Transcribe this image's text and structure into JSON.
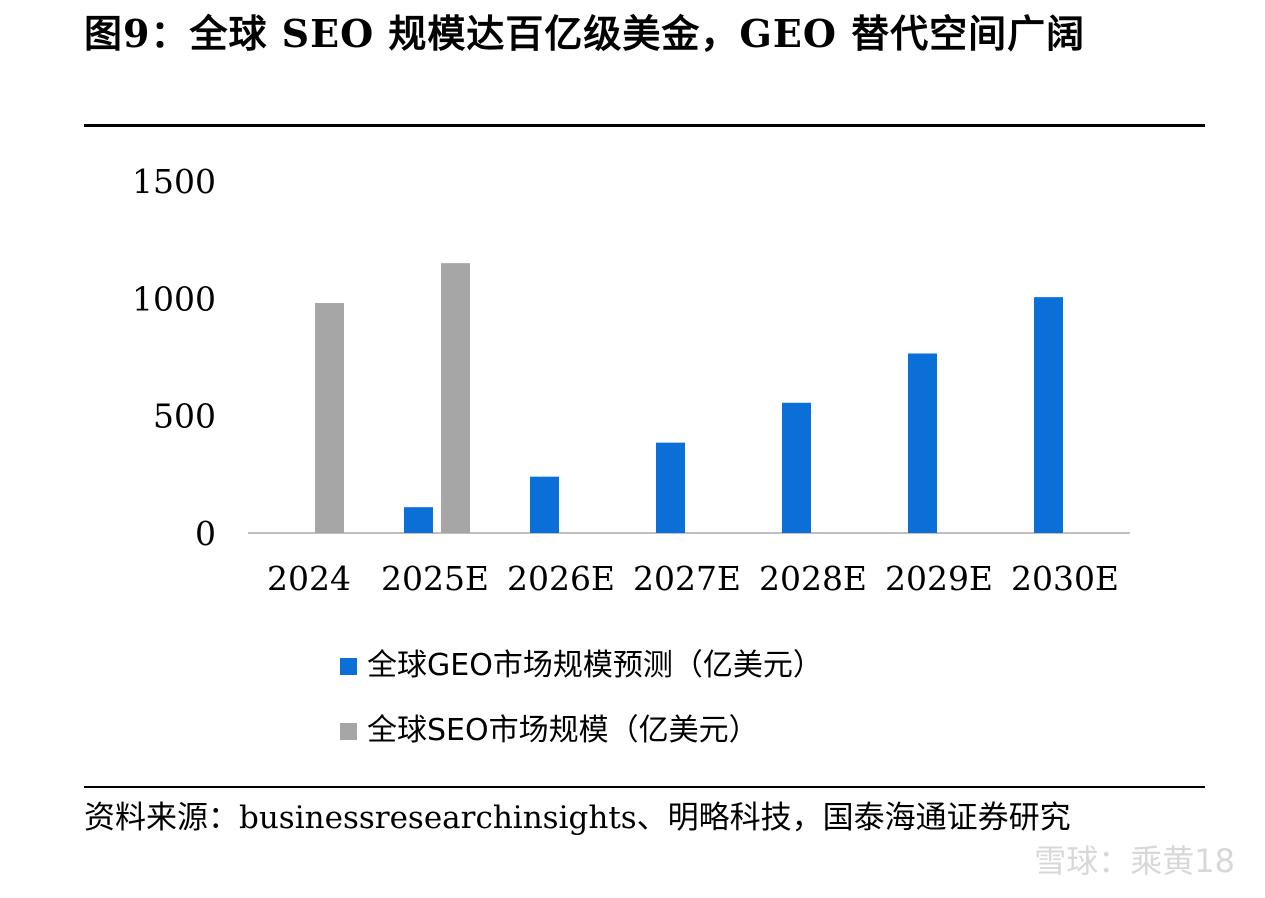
{
  "title": "图9：全球 SEO 规模达百亿级美金，GEO 替代空间广阔",
  "source": "资料来源：businessresearchinsights、明略科技，国泰海通证券研究",
  "watermark": "雪球：乘黄18",
  "colors": {
    "geo": "#0a6fd6",
    "seo": "#a6a6a6"
  },
  "chart_data": {
    "type": "bar",
    "categories": [
      "2024",
      "2025E",
      "2026E",
      "2027E",
      "2028E",
      "2029E",
      "2030E"
    ],
    "series": [
      {
        "name": "全球GEO市场规模预测（亿美元）",
        "values": [
          null,
          110,
          240,
          385,
          555,
          765,
          1005
        ]
      },
      {
        "name": "全球SEO市场规模（亿美元）",
        "values": [
          980,
          1150,
          null,
          null,
          null,
          null,
          null
        ]
      }
    ],
    "yticks": [
      "0",
      "500",
      "1000",
      "1500"
    ],
    "ylim": [
      0,
      1500
    ],
    "legend_position": "bottom",
    "grid": false
  }
}
